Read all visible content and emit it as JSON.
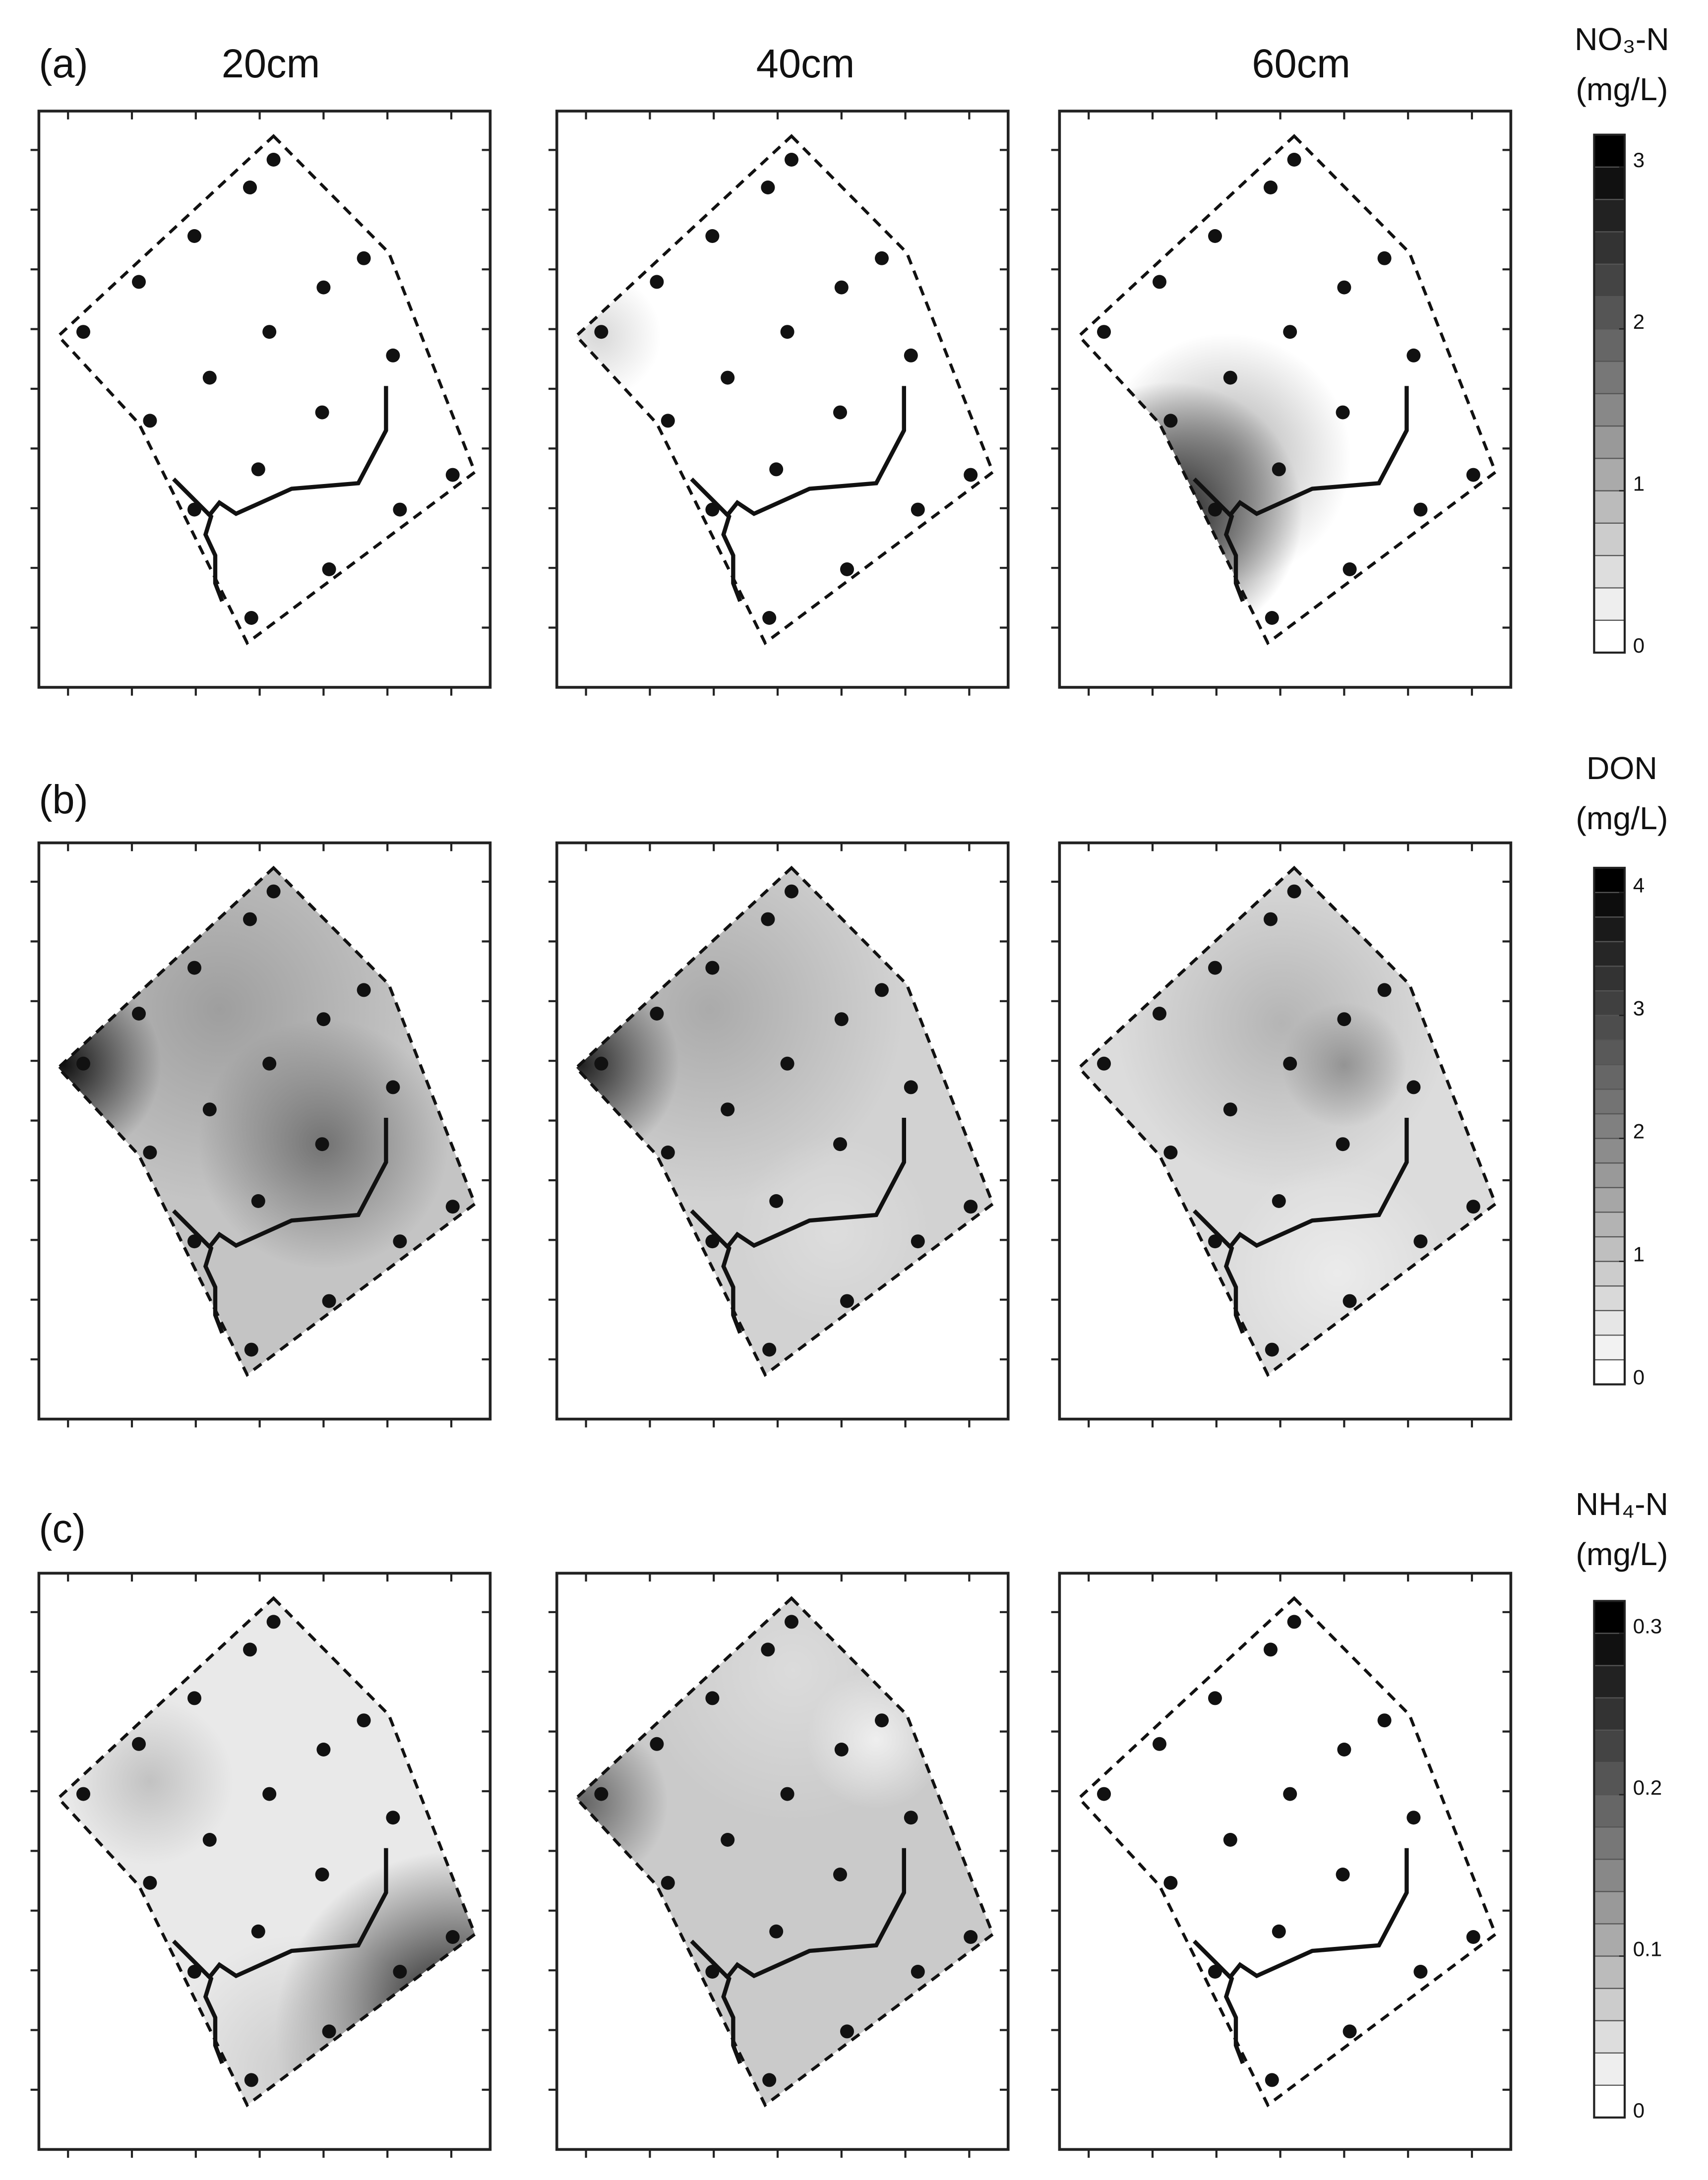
{
  "column_titles": [
    "20cm",
    "40cm",
    "60cm"
  ],
  "rows": [
    {
      "label": "(a)",
      "colorbar": {
        "title": "NO₃-N",
        "unit": "(mg/L)",
        "lim": [
          0,
          3.2
        ],
        "step": 0.2,
        "ticks": [
          0,
          1,
          2,
          3
        ]
      }
    },
    {
      "label": "(b)",
      "colorbar": {
        "title": "DON",
        "unit": "(mg/L)",
        "lim": [
          0,
          4.2
        ],
        "step": 0.2,
        "ticks": [
          0,
          1,
          2,
          3,
          4
        ]
      }
    },
    {
      "label": "(c)",
      "colorbar": {
        "title": "NH₄-N",
        "unit": "(mg/L)",
        "lim": [
          0,
          0.32
        ],
        "step": 0.02,
        "ticks": [
          0,
          0.1,
          0.2,
          0.3
        ]
      }
    }
  ]
}
